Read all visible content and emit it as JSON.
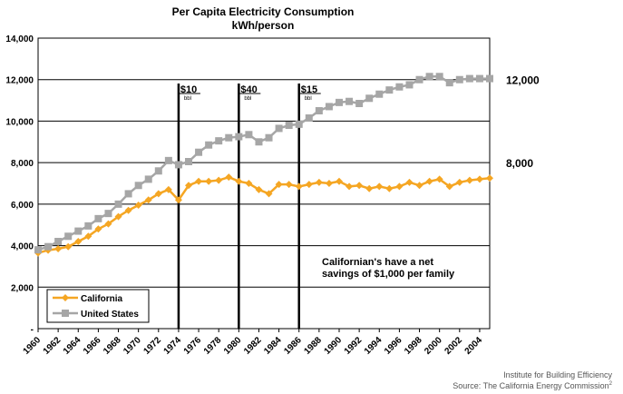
{
  "chart_data": {
    "type": "line",
    "title": "Per Capita Electricity Consumption",
    "subtitle": "kWh/person",
    "ylim": [
      0,
      14000
    ],
    "yticks": [
      "-",
      "2,000",
      "4,000",
      "6,000",
      "8,000",
      "10,000",
      "12,000",
      "14,000"
    ],
    "xticks": [
      "1960",
      "1962",
      "1964",
      "1966",
      "1968",
      "1970",
      "1972",
      "1974",
      "1976",
      "1978",
      "1980",
      "1982",
      "1984",
      "1986",
      "1988",
      "1990",
      "1992",
      "1994",
      "1996",
      "1998",
      "2000",
      "2002",
      "2004"
    ],
    "grid": true,
    "legend_position": "bottom-left",
    "x": [
      1960,
      1961,
      1962,
      1963,
      1964,
      1965,
      1966,
      1967,
      1968,
      1969,
      1970,
      1971,
      1972,
      1973,
      1974,
      1975,
      1976,
      1977,
      1978,
      1979,
      1980,
      1981,
      1982,
      1983,
      1984,
      1985,
      1986,
      1987,
      1988,
      1989,
      1990,
      1991,
      1992,
      1993,
      1994,
      1995,
      1996,
      1997,
      1998,
      1999,
      2000,
      2001,
      2002,
      2003,
      2004,
      2005
    ],
    "series": [
      {
        "name": "California",
        "color": "#f5a623",
        "marker": "diamond",
        "values": [
          3650,
          3780,
          3850,
          3950,
          4200,
          4450,
          4800,
          5050,
          5400,
          5700,
          5950,
          6200,
          6500,
          6700,
          6200,
          6900,
          7100,
          7100,
          7150,
          7300,
          7100,
          7000,
          6700,
          6500,
          6950,
          6950,
          6850,
          6950,
          7050,
          7000,
          7100,
          6850,
          6900,
          6750,
          6850,
          6750,
          6850,
          7050,
          6900,
          7100,
          7200,
          6850,
          7050,
          7150,
          7200,
          7250
        ]
      },
      {
        "name": "United States",
        "color": "#a6a6a6",
        "marker": "square",
        "values": [
          3800,
          3950,
          4200,
          4450,
          4700,
          4950,
          5300,
          5550,
          6000,
          6500,
          6900,
          7200,
          7600,
          8100,
          7900,
          8050,
          8500,
          8850,
          9050,
          9200,
          9250,
          9350,
          9000,
          9200,
          9650,
          9800,
          9850,
          10150,
          10500,
          10700,
          10900,
          10950,
          10850,
          11100,
          11300,
          11500,
          11650,
          11750,
          12000,
          12150,
          12150,
          11850,
          12000,
          12050,
          12050,
          12050
        ]
      }
    ],
    "events": [
      {
        "x": 1974,
        "label": "$10",
        "sub": "bbl"
      },
      {
        "x": 1980,
        "label": "$40",
        "sub": "bbl"
      },
      {
        "x": 1986,
        "label": "$15",
        "sub": "bbl"
      }
    ],
    "annotation": [
      "Californian's have a net",
      "savings of $1,000 per family"
    ],
    "right_labels": [
      {
        "value": 12000,
        "text": "12,000"
      },
      {
        "value": 8000,
        "text": "8,000"
      }
    ]
  },
  "footer": {
    "line1": "Institute for Building Efficiency",
    "line2": "Source: The California Energy Commission"
  }
}
